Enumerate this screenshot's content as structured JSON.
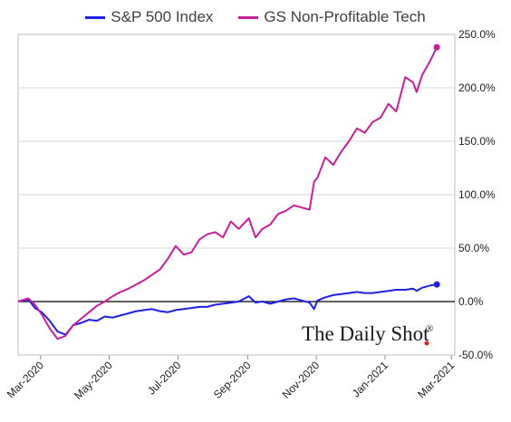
{
  "chart_data": {
    "type": "line",
    "title": "",
    "xlabel": "",
    "ylabel": "",
    "grid": true,
    "legend_placement": "top",
    "ylim": [
      -50,
      250
    ],
    "xlim": [
      "2020-02-10",
      "2021-03-04"
    ],
    "y_ticks": [
      -50,
      0,
      50,
      100,
      150,
      200,
      250
    ],
    "y_tick_labels": [
      "-50.0%",
      "0.0%",
      "50.0%",
      "100.0%",
      "150.0%",
      "200.0%",
      "250.0%"
    ],
    "x_ticks": [
      "2020-03-01",
      "2020-05-01",
      "2020-07-01",
      "2020-09-01",
      "2020-11-01",
      "2021-01-01",
      "2021-03-01"
    ],
    "x_tick_labels": [
      "Mar-2020",
      "May-2020",
      "Jul-2020",
      "Sep-2020",
      "Nov-2020",
      "Jan-2021",
      "Mar-2021"
    ],
    "series": [
      {
        "name": "S&P 500 Index",
        "color": "#1f1fe6",
        "x": [
          "2020-02-10",
          "2020-02-19",
          "2020-02-25",
          "2020-03-02",
          "2020-03-09",
          "2020-03-16",
          "2020-03-23",
          "2020-03-30",
          "2020-04-06",
          "2020-04-13",
          "2020-04-20",
          "2020-04-27",
          "2020-05-04",
          "2020-05-11",
          "2020-05-18",
          "2020-05-25",
          "2020-06-01",
          "2020-06-08",
          "2020-06-15",
          "2020-06-22",
          "2020-06-29",
          "2020-07-06",
          "2020-07-13",
          "2020-07-20",
          "2020-07-27",
          "2020-08-03",
          "2020-08-10",
          "2020-08-17",
          "2020-08-24",
          "2020-09-02",
          "2020-09-08",
          "2020-09-14",
          "2020-09-21",
          "2020-09-28",
          "2020-10-05",
          "2020-10-12",
          "2020-10-19",
          "2020-10-26",
          "2020-10-30",
          "2020-11-02",
          "2020-11-09",
          "2020-11-16",
          "2020-11-23",
          "2020-11-30",
          "2020-12-07",
          "2020-12-14",
          "2020-12-21",
          "2020-12-28",
          "2021-01-04",
          "2021-01-11",
          "2021-01-19",
          "2021-01-26",
          "2021-01-29",
          "2021-02-03",
          "2021-02-10",
          "2021-02-16"
        ],
        "y": [
          0,
          2,
          -6,
          -10,
          -18,
          -28,
          -31,
          -22,
          -20,
          -17,
          -18,
          -14,
          -15,
          -13,
          -11,
          -9,
          -8,
          -7,
          -9,
          -10,
          -8,
          -7,
          -6,
          -5,
          -5,
          -3,
          -2,
          -1,
          0,
          5,
          -1,
          0,
          -2,
          0,
          2,
          3,
          1,
          -1,
          -7,
          1,
          4,
          6,
          7,
          8,
          9,
          8,
          8,
          9,
          10,
          11,
          11,
          12,
          10,
          13,
          15,
          16
        ]
      },
      {
        "name": "GS Non-Profitable Tech",
        "color": "#cc1d9c",
        "x": [
          "2020-02-10",
          "2020-02-19",
          "2020-02-25",
          "2020-03-02",
          "2020-03-09",
          "2020-03-16",
          "2020-03-23",
          "2020-03-30",
          "2020-04-06",
          "2020-04-13",
          "2020-04-20",
          "2020-04-27",
          "2020-05-04",
          "2020-05-11",
          "2020-05-18",
          "2020-05-25",
          "2020-06-01",
          "2020-06-08",
          "2020-06-15",
          "2020-06-22",
          "2020-06-29",
          "2020-07-06",
          "2020-07-13",
          "2020-07-20",
          "2020-07-27",
          "2020-08-03",
          "2020-08-10",
          "2020-08-17",
          "2020-08-24",
          "2020-09-02",
          "2020-09-08",
          "2020-09-14",
          "2020-09-21",
          "2020-09-28",
          "2020-10-05",
          "2020-10-12",
          "2020-10-19",
          "2020-10-26",
          "2020-10-30",
          "2020-11-02",
          "2020-11-09",
          "2020-11-16",
          "2020-11-23",
          "2020-11-30",
          "2020-12-07",
          "2020-12-14",
          "2020-12-21",
          "2020-12-28",
          "2021-01-04",
          "2021-01-11",
          "2021-01-19",
          "2021-01-26",
          "2021-01-29",
          "2021-02-03",
          "2021-02-10",
          "2021-02-16"
        ],
        "y": [
          0,
          3,
          -3,
          -12,
          -25,
          -35,
          -32,
          -22,
          -16,
          -10,
          -4,
          0,
          5,
          9,
          12,
          16,
          20,
          25,
          30,
          40,
          52,
          44,
          46,
          58,
          63,
          65,
          60,
          75,
          68,
          78,
          60,
          68,
          72,
          82,
          85,
          90,
          88,
          86,
          112,
          116,
          135,
          128,
          140,
          150,
          162,
          158,
          168,
          172,
          185,
          178,
          210,
          205,
          196,
          212,
          225,
          238
        ]
      }
    ]
  },
  "legend": {
    "items": [
      {
        "label": "S&P 500 Index",
        "color": "#1f1fe6"
      },
      {
        "label": "GS Non-Profitable Tech",
        "color": "#cc1d9c"
      }
    ]
  },
  "watermark": {
    "text": "The Daily Shot",
    "mark": "®",
    "dot_color": "#d9241e"
  }
}
